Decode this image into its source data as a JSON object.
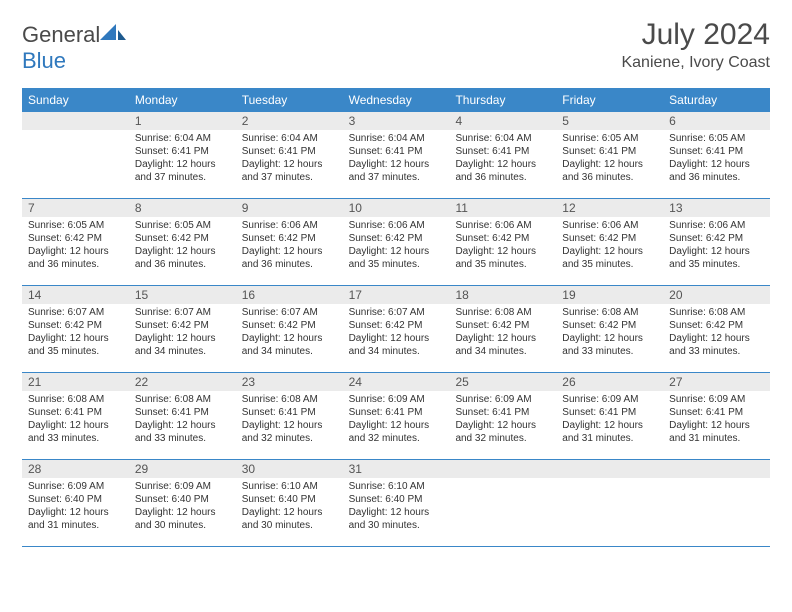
{
  "brand": {
    "general": "General",
    "blue": "Blue"
  },
  "title": "July 2024",
  "location": "Kaniene, Ivory Coast",
  "colors": {
    "header_bg": "#3a87c8",
    "header_text": "#ffffff",
    "daynum_bg": "#ebebeb",
    "border": "#3a87c8",
    "text": "#333333",
    "brand_blue": "#2f78bd",
    "brand_gray": "#4a4a4a"
  },
  "day_labels": [
    "Sunday",
    "Monday",
    "Tuesday",
    "Wednesday",
    "Thursday",
    "Friday",
    "Saturday"
  ],
  "weeks": [
    [
      {
        "n": "",
        "sunrise": "",
        "sunset": "",
        "daylight": ""
      },
      {
        "n": "1",
        "sunrise": "Sunrise: 6:04 AM",
        "sunset": "Sunset: 6:41 PM",
        "daylight": "Daylight: 12 hours and 37 minutes."
      },
      {
        "n": "2",
        "sunrise": "Sunrise: 6:04 AM",
        "sunset": "Sunset: 6:41 PM",
        "daylight": "Daylight: 12 hours and 37 minutes."
      },
      {
        "n": "3",
        "sunrise": "Sunrise: 6:04 AM",
        "sunset": "Sunset: 6:41 PM",
        "daylight": "Daylight: 12 hours and 37 minutes."
      },
      {
        "n": "4",
        "sunrise": "Sunrise: 6:04 AM",
        "sunset": "Sunset: 6:41 PM",
        "daylight": "Daylight: 12 hours and 36 minutes."
      },
      {
        "n": "5",
        "sunrise": "Sunrise: 6:05 AM",
        "sunset": "Sunset: 6:41 PM",
        "daylight": "Daylight: 12 hours and 36 minutes."
      },
      {
        "n": "6",
        "sunrise": "Sunrise: 6:05 AM",
        "sunset": "Sunset: 6:41 PM",
        "daylight": "Daylight: 12 hours and 36 minutes."
      }
    ],
    [
      {
        "n": "7",
        "sunrise": "Sunrise: 6:05 AM",
        "sunset": "Sunset: 6:42 PM",
        "daylight": "Daylight: 12 hours and 36 minutes."
      },
      {
        "n": "8",
        "sunrise": "Sunrise: 6:05 AM",
        "sunset": "Sunset: 6:42 PM",
        "daylight": "Daylight: 12 hours and 36 minutes."
      },
      {
        "n": "9",
        "sunrise": "Sunrise: 6:06 AM",
        "sunset": "Sunset: 6:42 PM",
        "daylight": "Daylight: 12 hours and 36 minutes."
      },
      {
        "n": "10",
        "sunrise": "Sunrise: 6:06 AM",
        "sunset": "Sunset: 6:42 PM",
        "daylight": "Daylight: 12 hours and 35 minutes."
      },
      {
        "n": "11",
        "sunrise": "Sunrise: 6:06 AM",
        "sunset": "Sunset: 6:42 PM",
        "daylight": "Daylight: 12 hours and 35 minutes."
      },
      {
        "n": "12",
        "sunrise": "Sunrise: 6:06 AM",
        "sunset": "Sunset: 6:42 PM",
        "daylight": "Daylight: 12 hours and 35 minutes."
      },
      {
        "n": "13",
        "sunrise": "Sunrise: 6:06 AM",
        "sunset": "Sunset: 6:42 PM",
        "daylight": "Daylight: 12 hours and 35 minutes."
      }
    ],
    [
      {
        "n": "14",
        "sunrise": "Sunrise: 6:07 AM",
        "sunset": "Sunset: 6:42 PM",
        "daylight": "Daylight: 12 hours and 35 minutes."
      },
      {
        "n": "15",
        "sunrise": "Sunrise: 6:07 AM",
        "sunset": "Sunset: 6:42 PM",
        "daylight": "Daylight: 12 hours and 34 minutes."
      },
      {
        "n": "16",
        "sunrise": "Sunrise: 6:07 AM",
        "sunset": "Sunset: 6:42 PM",
        "daylight": "Daylight: 12 hours and 34 minutes."
      },
      {
        "n": "17",
        "sunrise": "Sunrise: 6:07 AM",
        "sunset": "Sunset: 6:42 PM",
        "daylight": "Daylight: 12 hours and 34 minutes."
      },
      {
        "n": "18",
        "sunrise": "Sunrise: 6:08 AM",
        "sunset": "Sunset: 6:42 PM",
        "daylight": "Daylight: 12 hours and 34 minutes."
      },
      {
        "n": "19",
        "sunrise": "Sunrise: 6:08 AM",
        "sunset": "Sunset: 6:42 PM",
        "daylight": "Daylight: 12 hours and 33 minutes."
      },
      {
        "n": "20",
        "sunrise": "Sunrise: 6:08 AM",
        "sunset": "Sunset: 6:42 PM",
        "daylight": "Daylight: 12 hours and 33 minutes."
      }
    ],
    [
      {
        "n": "21",
        "sunrise": "Sunrise: 6:08 AM",
        "sunset": "Sunset: 6:41 PM",
        "daylight": "Daylight: 12 hours and 33 minutes."
      },
      {
        "n": "22",
        "sunrise": "Sunrise: 6:08 AM",
        "sunset": "Sunset: 6:41 PM",
        "daylight": "Daylight: 12 hours and 33 minutes."
      },
      {
        "n": "23",
        "sunrise": "Sunrise: 6:08 AM",
        "sunset": "Sunset: 6:41 PM",
        "daylight": "Daylight: 12 hours and 32 minutes."
      },
      {
        "n": "24",
        "sunrise": "Sunrise: 6:09 AM",
        "sunset": "Sunset: 6:41 PM",
        "daylight": "Daylight: 12 hours and 32 minutes."
      },
      {
        "n": "25",
        "sunrise": "Sunrise: 6:09 AM",
        "sunset": "Sunset: 6:41 PM",
        "daylight": "Daylight: 12 hours and 32 minutes."
      },
      {
        "n": "26",
        "sunrise": "Sunrise: 6:09 AM",
        "sunset": "Sunset: 6:41 PM",
        "daylight": "Daylight: 12 hours and 31 minutes."
      },
      {
        "n": "27",
        "sunrise": "Sunrise: 6:09 AM",
        "sunset": "Sunset: 6:41 PM",
        "daylight": "Daylight: 12 hours and 31 minutes."
      }
    ],
    [
      {
        "n": "28",
        "sunrise": "Sunrise: 6:09 AM",
        "sunset": "Sunset: 6:40 PM",
        "daylight": "Daylight: 12 hours and 31 minutes."
      },
      {
        "n": "29",
        "sunrise": "Sunrise: 6:09 AM",
        "sunset": "Sunset: 6:40 PM",
        "daylight": "Daylight: 12 hours and 30 minutes."
      },
      {
        "n": "30",
        "sunrise": "Sunrise: 6:10 AM",
        "sunset": "Sunset: 6:40 PM",
        "daylight": "Daylight: 12 hours and 30 minutes."
      },
      {
        "n": "31",
        "sunrise": "Sunrise: 6:10 AM",
        "sunset": "Sunset: 6:40 PM",
        "daylight": "Daylight: 12 hours and 30 minutes."
      },
      {
        "n": "",
        "sunrise": "",
        "sunset": "",
        "daylight": ""
      },
      {
        "n": "",
        "sunrise": "",
        "sunset": "",
        "daylight": ""
      },
      {
        "n": "",
        "sunrise": "",
        "sunset": "",
        "daylight": ""
      }
    ]
  ]
}
